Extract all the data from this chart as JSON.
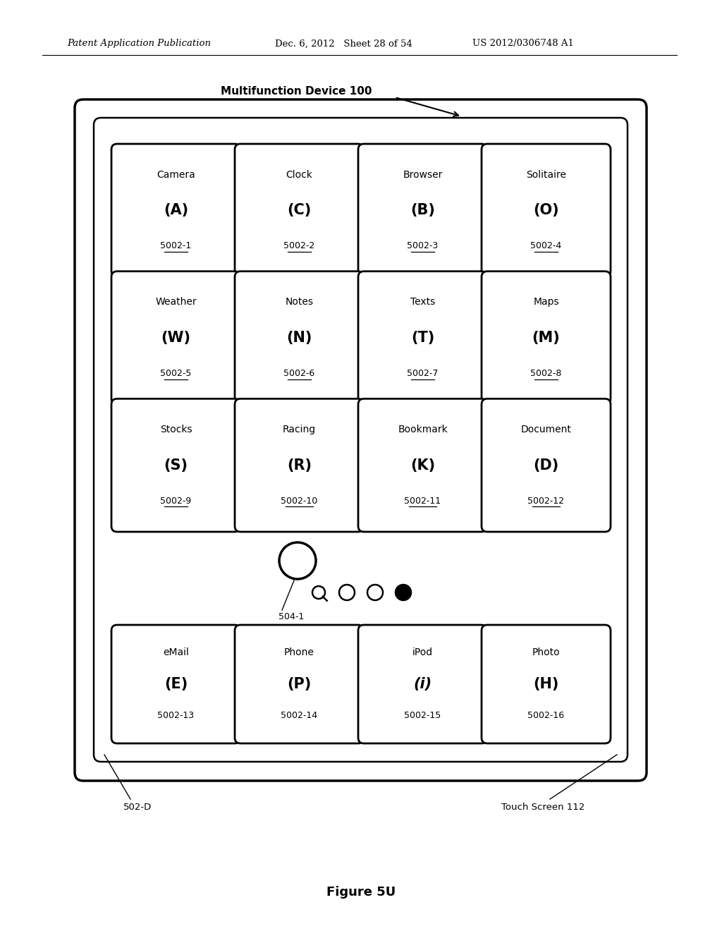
{
  "bg_color": "#ffffff",
  "header_left": "Patent Application Publication",
  "header_mid": "Dec. 6, 2012   Sheet 28 of 54",
  "header_right": "US 2012/0306748 A1",
  "figure_label": "Figure 5U",
  "device_label": "Multifunction Device 100",
  "touch_screen_label": "Touch Screen 112",
  "device_id_label": "502-D",
  "cursor_label": "504-1",
  "apps": [
    {
      "name": "Camera",
      "letter": "(A)",
      "id": "5002-1",
      "row": 0,
      "col": 0,
      "underline": true
    },
    {
      "name": "Clock",
      "letter": "(C)",
      "id": "5002-2",
      "row": 0,
      "col": 1,
      "underline": true
    },
    {
      "name": "Browser",
      "letter": "(B)",
      "id": "5002-3",
      "row": 0,
      "col": 2,
      "underline": true
    },
    {
      "name": "Solitaire",
      "letter": "(O)",
      "id": "5002-4",
      "row": 0,
      "col": 3,
      "underline": true
    },
    {
      "name": "Weather",
      "letter": "(W)",
      "id": "5002-5",
      "row": 1,
      "col": 0,
      "underline": true
    },
    {
      "name": "Notes",
      "letter": "(N)",
      "id": "5002-6",
      "row": 1,
      "col": 1,
      "underline": true
    },
    {
      "name": "Texts",
      "letter": "(T)",
      "id": "5002-7",
      "row": 1,
      "col": 2,
      "underline": true
    },
    {
      "name": "Maps",
      "letter": "(M)",
      "id": "5002-8",
      "row": 1,
      "col": 3,
      "underline": true
    },
    {
      "name": "Stocks",
      "letter": "(S)",
      "id": "5002-9",
      "row": 2,
      "col": 0,
      "underline": true
    },
    {
      "name": "Racing",
      "letter": "(R)",
      "id": "5002-10",
      "row": 2,
      "col": 1,
      "underline": true
    },
    {
      "name": "Bookmark",
      "letter": "(K)",
      "id": "5002-11",
      "row": 2,
      "col": 2,
      "underline": true
    },
    {
      "name": "Document",
      "letter": "(D)",
      "id": "5002-12",
      "row": 2,
      "col": 3,
      "underline": true
    },
    {
      "name": "eMail",
      "letter": "(E)",
      "id": "5002-13",
      "row": 3,
      "col": 0,
      "underline": false
    },
    {
      "name": "Phone",
      "letter": "(P)",
      "id": "5002-14",
      "row": 3,
      "col": 1,
      "underline": false
    },
    {
      "name": "iPod",
      "letter": "(i)",
      "id": "5002-15",
      "row": 3,
      "col": 2,
      "underline": false
    },
    {
      "name": "Photo",
      "letter": "(H)",
      "id": "5002-16",
      "row": 3,
      "col": 3,
      "underline": false
    }
  ]
}
